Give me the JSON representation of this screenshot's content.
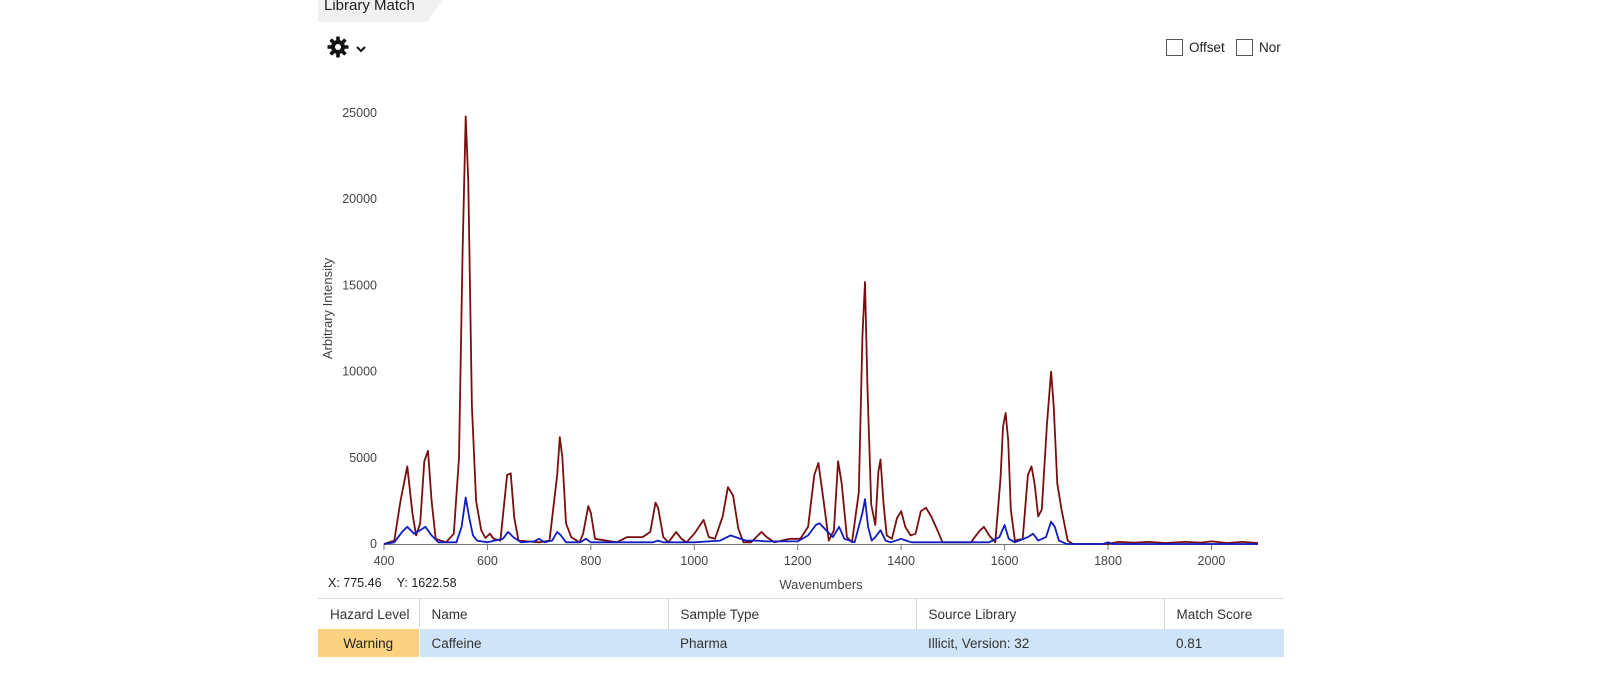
{
  "panel": {
    "tab_title": "Library Match",
    "gear_icon": "gear-icon",
    "offset_label": "Offset",
    "normalize_label": "Nor",
    "offset_checked": false,
    "normalize_checked": false
  },
  "readout": {
    "x": "X: 775.46",
    "y": "Y: 1622.58"
  },
  "chart_data": {
    "type": "line",
    "title": "",
    "xlabel": "Wavenumbers",
    "ylabel": "Arbitrary Intensity",
    "xlim": [
      400,
      2090
    ],
    "ylim": [
      0,
      25000
    ],
    "x_ticks": [
      400,
      600,
      800,
      1000,
      1200,
      1400,
      1600,
      1800,
      2000
    ],
    "y_ticks": [
      0,
      5000,
      10000,
      15000,
      20000,
      25000
    ],
    "grid": false,
    "series": [
      {
        "color": "#7a0d0d",
        "points": [
          [
            400,
            0
          ],
          [
            420,
            200
          ],
          [
            432,
            2500
          ],
          [
            445,
            4500
          ],
          [
            455,
            1800
          ],
          [
            462,
            500
          ],
          [
            470,
            1200
          ],
          [
            478,
            4800
          ],
          [
            485,
            5400
          ],
          [
            492,
            2500
          ],
          [
            500,
            300
          ],
          [
            520,
            100
          ],
          [
            535,
            600
          ],
          [
            545,
            5000
          ],
          [
            552,
            17000
          ],
          [
            558,
            24800
          ],
          [
            563,
            21000
          ],
          [
            570,
            8000
          ],
          [
            578,
            2500
          ],
          [
            588,
            800
          ],
          [
            596,
            350
          ],
          [
            605,
            600
          ],
          [
            612,
            300
          ],
          [
            625,
            200
          ],
          [
            638,
            4000
          ],
          [
            645,
            4100
          ],
          [
            652,
            1500
          ],
          [
            660,
            200
          ],
          [
            700,
            100
          ],
          [
            720,
            200
          ],
          [
            735,
            4000
          ],
          [
            740,
            6200
          ],
          [
            745,
            5000
          ],
          [
            752,
            1200
          ],
          [
            762,
            400
          ],
          [
            778,
            100
          ],
          [
            785,
            600
          ],
          [
            795,
            2200
          ],
          [
            800,
            1800
          ],
          [
            808,
            300
          ],
          [
            850,
            100
          ],
          [
            870,
            400
          ],
          [
            900,
            400
          ],
          [
            915,
            700
          ],
          [
            925,
            2400
          ],
          [
            930,
            2100
          ],
          [
            940,
            400
          ],
          [
            950,
            100
          ],
          [
            965,
            700
          ],
          [
            975,
            300
          ],
          [
            985,
            100
          ],
          [
            1000,
            600
          ],
          [
            1018,
            1400
          ],
          [
            1028,
            400
          ],
          [
            1040,
            300
          ],
          [
            1055,
            1600
          ],
          [
            1065,
            3300
          ],
          [
            1075,
            2800
          ],
          [
            1085,
            900
          ],
          [
            1095,
            100
          ],
          [
            1110,
            100
          ],
          [
            1130,
            700
          ],
          [
            1140,
            400
          ],
          [
            1155,
            100
          ],
          [
            1185,
            300
          ],
          [
            1205,
            300
          ],
          [
            1220,
            1000
          ],
          [
            1232,
            4000
          ],
          [
            1240,
            4700
          ],
          [
            1250,
            2500
          ],
          [
            1260,
            200
          ],
          [
            1270,
            800
          ],
          [
            1278,
            4800
          ],
          [
            1285,
            3500
          ],
          [
            1295,
            400
          ],
          [
            1305,
            100
          ],
          [
            1318,
            3000
          ],
          [
            1325,
            12000
          ],
          [
            1330,
            15200
          ],
          [
            1335,
            9000
          ],
          [
            1342,
            2300
          ],
          [
            1350,
            1100
          ],
          [
            1356,
            4200
          ],
          [
            1360,
            4900
          ],
          [
            1366,
            2300
          ],
          [
            1372,
            500
          ],
          [
            1382,
            300
          ],
          [
            1392,
            1500
          ],
          [
            1400,
            1900
          ],
          [
            1408,
            1000
          ],
          [
            1418,
            500
          ],
          [
            1428,
            600
          ],
          [
            1438,
            1900
          ],
          [
            1448,
            2100
          ],
          [
            1458,
            1600
          ],
          [
            1470,
            800
          ],
          [
            1480,
            100
          ],
          [
            1535,
            100
          ],
          [
            1550,
            700
          ],
          [
            1560,
            1000
          ],
          [
            1570,
            500
          ],
          [
            1582,
            100
          ],
          [
            1592,
            3800
          ],
          [
            1597,
            6800
          ],
          [
            1602,
            7600
          ],
          [
            1607,
            6000
          ],
          [
            1612,
            2000
          ],
          [
            1620,
            200
          ],
          [
            1635,
            300
          ],
          [
            1645,
            4000
          ],
          [
            1652,
            4500
          ],
          [
            1658,
            3500
          ],
          [
            1665,
            1600
          ],
          [
            1672,
            2000
          ],
          [
            1682,
            7000
          ],
          [
            1690,
            10000
          ],
          [
            1695,
            8000
          ],
          [
            1702,
            3500
          ],
          [
            1710,
            2000
          ],
          [
            1722,
            200
          ],
          [
            1732,
            0
          ],
          [
            1800,
            0
          ],
          [
            1820,
            120
          ],
          [
            1850,
            80
          ],
          [
            1880,
            120
          ],
          [
            1910,
            60
          ],
          [
            1950,
            120
          ],
          [
            1980,
            80
          ],
          [
            2000,
            150
          ],
          [
            2030,
            60
          ],
          [
            2060,
            120
          ],
          [
            2090,
            60
          ]
        ]
      },
      {
        "color": "#0f1fbf",
        "points": [
          [
            400,
            0
          ],
          [
            420,
            100
          ],
          [
            435,
            700
          ],
          [
            445,
            1000
          ],
          [
            458,
            600
          ],
          [
            470,
            800
          ],
          [
            480,
            1000
          ],
          [
            492,
            500
          ],
          [
            505,
            100
          ],
          [
            540,
            100
          ],
          [
            550,
            1000
          ],
          [
            558,
            2700
          ],
          [
            565,
            1500
          ],
          [
            572,
            500
          ],
          [
            580,
            200
          ],
          [
            600,
            100
          ],
          [
            630,
            300
          ],
          [
            640,
            700
          ],
          [
            650,
            400
          ],
          [
            665,
            100
          ],
          [
            690,
            150
          ],
          [
            700,
            300
          ],
          [
            710,
            100
          ],
          [
            725,
            200
          ],
          [
            735,
            700
          ],
          [
            742,
            500
          ],
          [
            752,
            100
          ],
          [
            780,
            100
          ],
          [
            790,
            300
          ],
          [
            800,
            100
          ],
          [
            850,
            100
          ],
          [
            880,
            100
          ],
          [
            920,
            100
          ],
          [
            930,
            200
          ],
          [
            940,
            100
          ],
          [
            1000,
            100
          ],
          [
            1050,
            200
          ],
          [
            1070,
            500
          ],
          [
            1080,
            400
          ],
          [
            1100,
            200
          ],
          [
            1120,
            200
          ],
          [
            1140,
            150
          ],
          [
            1160,
            150
          ],
          [
            1200,
            150
          ],
          [
            1220,
            500
          ],
          [
            1235,
            1100
          ],
          [
            1242,
            1200
          ],
          [
            1255,
            800
          ],
          [
            1268,
            400
          ],
          [
            1280,
            1000
          ],
          [
            1290,
            300
          ],
          [
            1310,
            100
          ],
          [
            1325,
            1800
          ],
          [
            1330,
            2600
          ],
          [
            1336,
            1000
          ],
          [
            1343,
            200
          ],
          [
            1350,
            400
          ],
          [
            1360,
            800
          ],
          [
            1370,
            200
          ],
          [
            1380,
            100
          ],
          [
            1400,
            300
          ],
          [
            1410,
            200
          ],
          [
            1420,
            100
          ],
          [
            1460,
            100
          ],
          [
            1530,
            100
          ],
          [
            1570,
            100
          ],
          [
            1590,
            400
          ],
          [
            1600,
            1100
          ],
          [
            1608,
            300
          ],
          [
            1620,
            100
          ],
          [
            1645,
            400
          ],
          [
            1655,
            600
          ],
          [
            1665,
            200
          ],
          [
            1680,
            400
          ],
          [
            1690,
            1300
          ],
          [
            1697,
            1000
          ],
          [
            1705,
            200
          ],
          [
            1720,
            0
          ],
          [
            1790,
            0
          ],
          [
            1800,
            100
          ],
          [
            1810,
            0
          ],
          [
            2090,
            0
          ]
        ]
      }
    ]
  },
  "table": {
    "headers": [
      "Hazard Level",
      "Name",
      "Sample Type",
      "Source Library",
      "Match Score"
    ],
    "row": {
      "hazard_level": "Warning",
      "name": "Caffeine",
      "sample_type": "Pharma",
      "source_library": "Illicit, Version: 32",
      "match_score": "0.81",
      "hazard_color": "#fcd180",
      "row_color": "#cfe4f6"
    }
  }
}
